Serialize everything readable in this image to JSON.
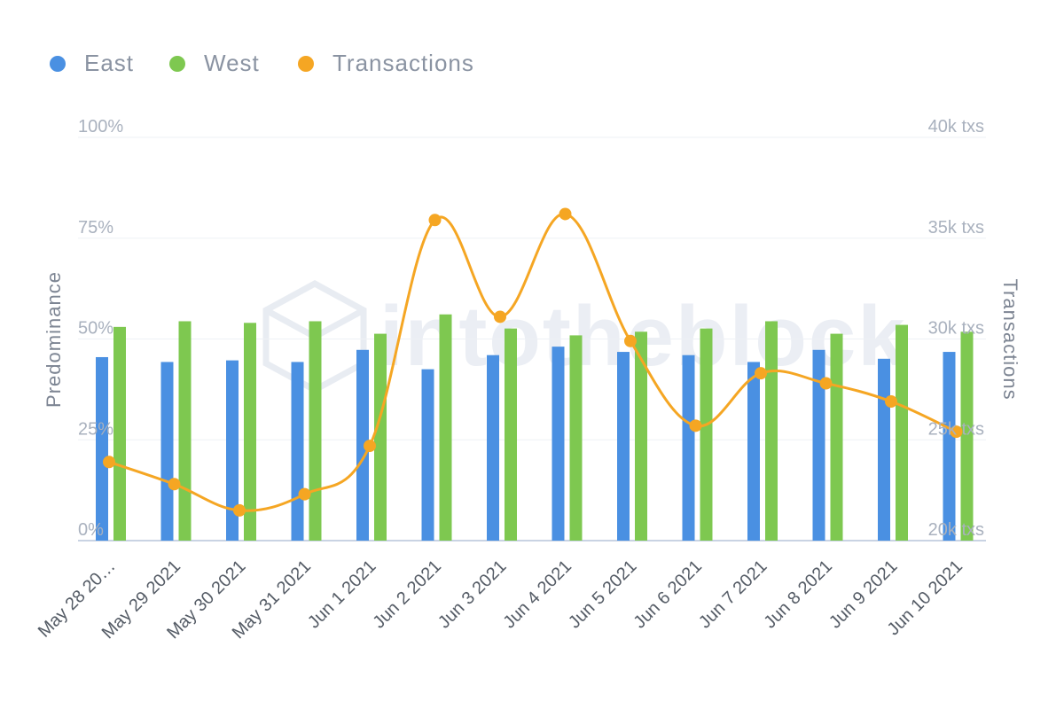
{
  "chart_data": {
    "type": "bar",
    "categories": [
      "May 28 20…",
      "May 29 2021",
      "May 30 2021",
      "May 31 2021",
      "Jun 1 2021",
      "Jun 2 2021",
      "Jun 3 2021",
      "Jun 4 2021",
      "Jun 5 2021",
      "Jun 6 2021",
      "Jun 7 2021",
      "Jun 8 2021",
      "Jun 9 2021",
      "Jun 10 2021"
    ],
    "series": [
      {
        "name": "East",
        "type": "bar",
        "axis": "left",
        "color": "#4a90e2",
        "values": [
          45.5,
          44.3,
          44.7,
          44.3,
          47.3,
          42.5,
          46.0,
          48.1,
          46.8,
          46.0,
          44.3,
          47.3,
          45.1,
          46.8
        ]
      },
      {
        "name": "West",
        "type": "bar",
        "axis": "left",
        "color": "#7ec850",
        "values": [
          53.0,
          54.4,
          54.0,
          54.4,
          51.3,
          56.1,
          52.6,
          50.9,
          51.8,
          52.6,
          54.4,
          51.3,
          53.5,
          51.8
        ]
      },
      {
        "name": "Transactions",
        "type": "line",
        "axis": "right",
        "color": "#f5a623",
        "values": [
          23900,
          22800,
          21500,
          22300,
          24700,
          35900,
          31100,
          36200,
          29900,
          25700,
          28300,
          27800,
          26900,
          25400
        ]
      }
    ],
    "legend": [
      "East",
      "West",
      "Transactions"
    ],
    "y_left": {
      "title": "Predominance",
      "ticks": [
        "0%",
        "25%",
        "50%",
        "75%",
        "100%"
      ],
      "range": [
        0,
        100
      ]
    },
    "y_right": {
      "title": "Transactions",
      "ticks": [
        "20k txs",
        "25k txs",
        "30k txs",
        "35k txs",
        "40k txs"
      ],
      "range": [
        20000,
        40000
      ]
    },
    "grid": true,
    "legend_position": "top-left",
    "watermark": "intotheblock"
  }
}
